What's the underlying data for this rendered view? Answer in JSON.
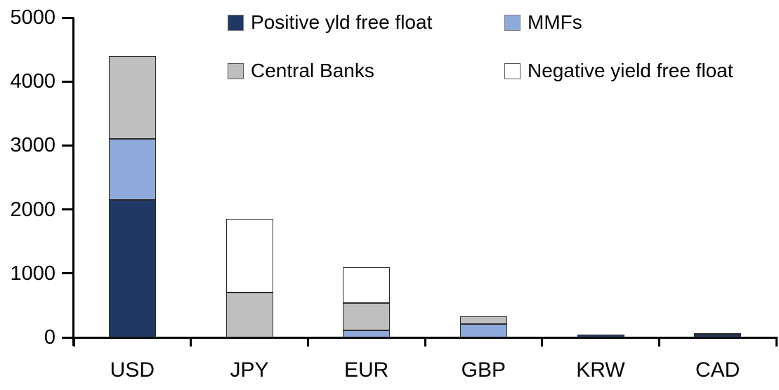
{
  "chart_data": {
    "type": "bar",
    "stacked": true,
    "title": "",
    "xlabel": "",
    "ylabel": "",
    "categories": [
      "USD",
      "JPY",
      "EUR",
      "GBP",
      "KRW",
      "CAD"
    ],
    "series": [
      {
        "name": "Positive yld free float",
        "color": "#1F3864",
        "values": [
          2150,
          0,
          0,
          0,
          45,
          40
        ]
      },
      {
        "name": "MMFs",
        "color": "#8EAADB",
        "values": [
          950,
          0,
          110,
          210,
          0,
          0
        ]
      },
      {
        "name": "Central Banks",
        "color": "#BFBFBF",
        "values": [
          1300,
          700,
          430,
          120,
          0,
          25
        ]
      },
      {
        "name": "Negative yield free float",
        "color": "#FFFFFF",
        "values": [
          0,
          1150,
          560,
          0,
          0,
          0
        ]
      }
    ],
    "stack_order_bottom_to_top": [
      "Positive yld free float",
      "MMFs",
      "Central Banks",
      "Negative yield free float"
    ],
    "category_totals": [
      4400,
      1850,
      1100,
      330,
      45,
      65
    ],
    "ylim": [
      0,
      5000
    ],
    "yticks": [
      0,
      1000,
      2000,
      3000,
      4000,
      5000
    ],
    "grid": false,
    "legend_position": "top",
    "legend_rows": [
      [
        "Positive yld free float",
        "MMFs"
      ],
      [
        "Central Banks",
        "Negative yield free float"
      ]
    ],
    "axis_color": "#000000",
    "text_color": "#000000",
    "background_color": "#FFFFFF"
  }
}
